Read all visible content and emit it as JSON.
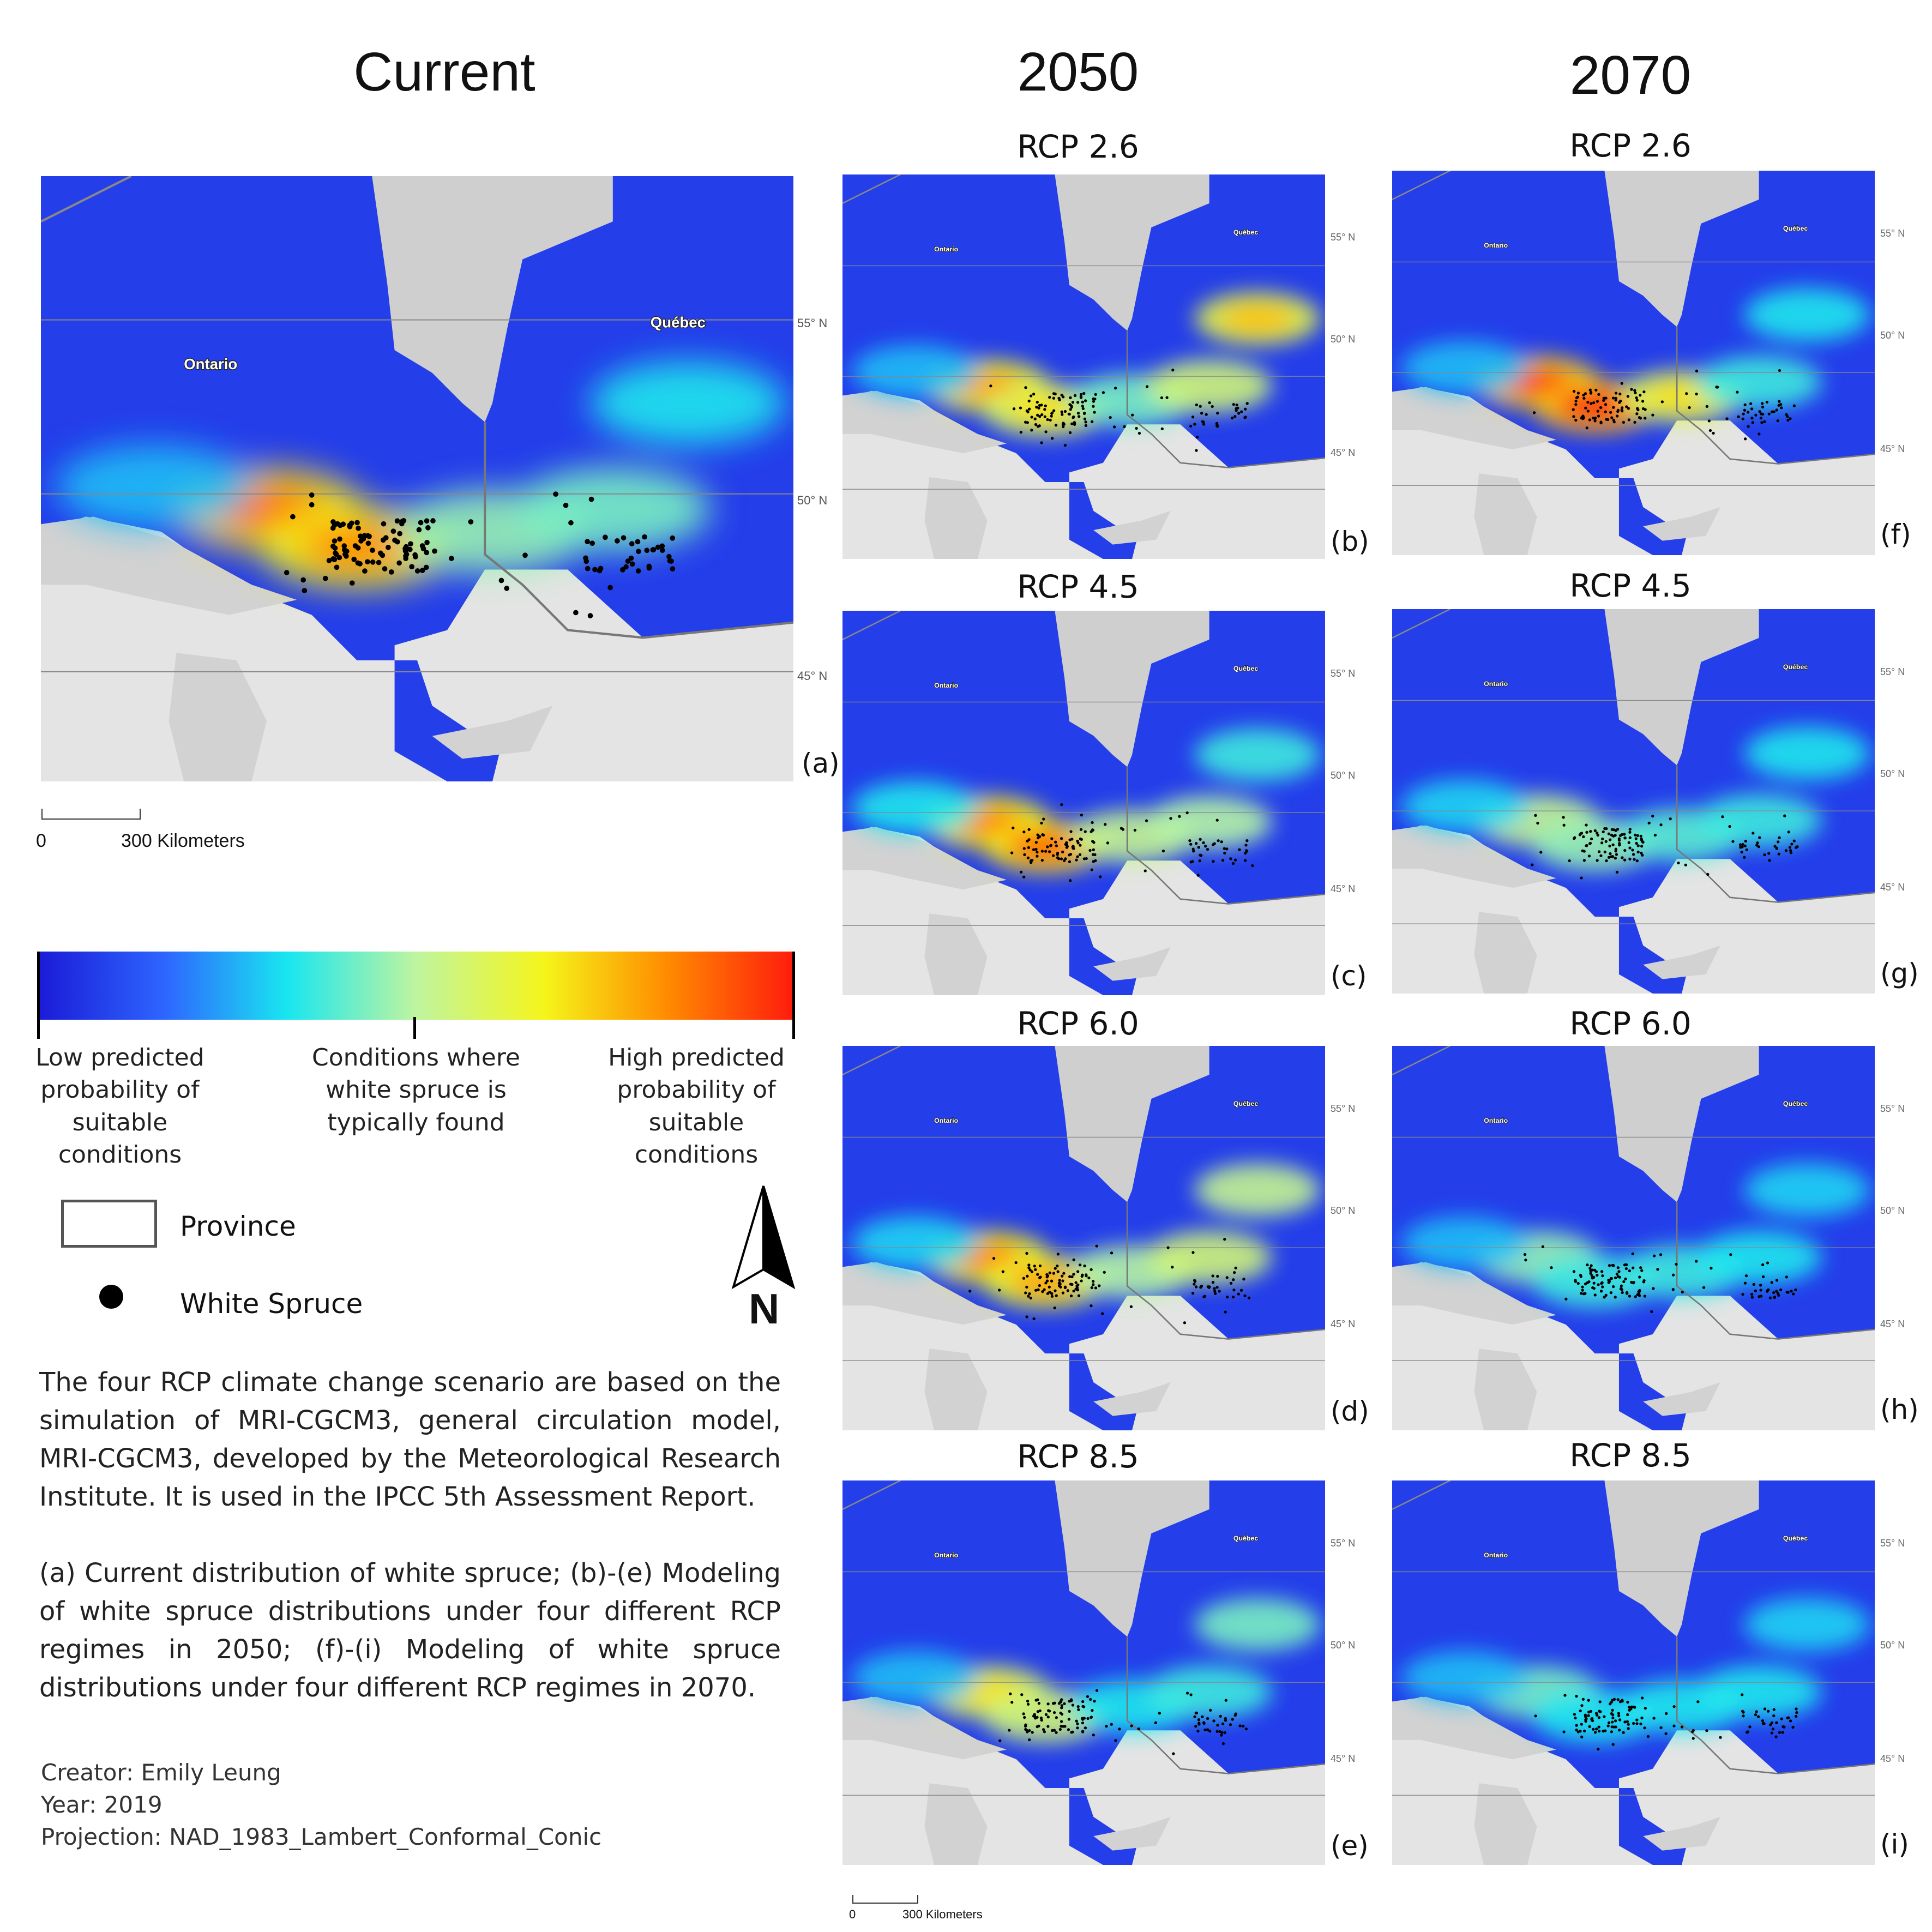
{
  "columns": {
    "current": "Current",
    "y2050": "2050",
    "y2070": "2070"
  },
  "panels": [
    {
      "id": "a",
      "title": "",
      "letter": "(a)",
      "suit": [
        0.75,
        0.7,
        0.35,
        0.3,
        0.15,
        0.05
      ]
    },
    {
      "id": "b",
      "title": "RCP 2.6",
      "letter": "(b)",
      "suit": [
        0.65,
        0.55,
        0.3,
        0.5,
        0.6,
        0.05
      ]
    },
    {
      "id": "c",
      "title": "RCP 4.5",
      "letter": "(c)",
      "suit": [
        0.7,
        0.75,
        0.45,
        0.4,
        0.2,
        0.15
      ]
    },
    {
      "id": "d",
      "title": "RCP 6.0",
      "letter": "(d)",
      "suit": [
        0.7,
        0.65,
        0.4,
        0.5,
        0.45,
        0.1
      ]
    },
    {
      "id": "e",
      "title": "RCP 8.5",
      "letter": "(e)",
      "suit": [
        0.55,
        0.5,
        0.15,
        0.2,
        0.3,
        0.05
      ]
    },
    {
      "id": "f",
      "title": "RCP 2.6",
      "letter": "(f)",
      "suit": [
        0.8,
        0.85,
        0.55,
        0.2,
        0.15,
        0.05
      ]
    },
    {
      "id": "g",
      "title": "RCP 4.5",
      "letter": "(g)",
      "suit": [
        0.45,
        0.35,
        0.25,
        0.2,
        0.15,
        0.1
      ]
    },
    {
      "id": "h",
      "title": "RCP 6.0",
      "letter": "(h)",
      "suit": [
        0.35,
        0.2,
        0.2,
        0.15,
        0.1,
        0.05
      ]
    },
    {
      "id": "i",
      "title": "RCP 8.5",
      "letter": "(i)",
      "suit": [
        0.3,
        0.15,
        0.15,
        0.15,
        0.1,
        0.05
      ]
    }
  ],
  "map_labels": {
    "ontario": "Ontario",
    "quebec": "Québec",
    "lat55": "55° N",
    "lat50": "50° N",
    "lat45": "45° N"
  },
  "scale": {
    "zero": "0",
    "label": "300 Kilometers"
  },
  "legend": {
    "low": "Low predicted probability of suitable conditions",
    "mid": "Conditions where white spruce is typically found",
    "high": "High predicted probability of suitable conditions",
    "province": "Province",
    "spruce": "White Spruce",
    "north": "N",
    "gradient_colors": [
      "#1a1ad6",
      "#2e66ff",
      "#19e6f0",
      "#bff5a0",
      "#f5f51a",
      "#ff8c00",
      "#ff1a0d"
    ]
  },
  "description": "The four RCP climate change scenario are based on the simulation of MRI-CGCM3, general circulation model, MRI-CGCM3, developed by the Meteorological Research Institute.  It is used in the IPCC 5th Assessment Report.",
  "caption": "(a) Current distribution of white spruce; (b)-(e) Modeling of white spruce distributions under four different RCP regimes in 2050; (f)-(i) Modeling of white spruce distributions under four different RCP regimes in 2070.",
  "credits": {
    "creator": "Creator: Emily Leung",
    "year": "Year: 2019",
    "projection": "Projection: NAD_1983_Lambert_Conformal_Conic"
  }
}
